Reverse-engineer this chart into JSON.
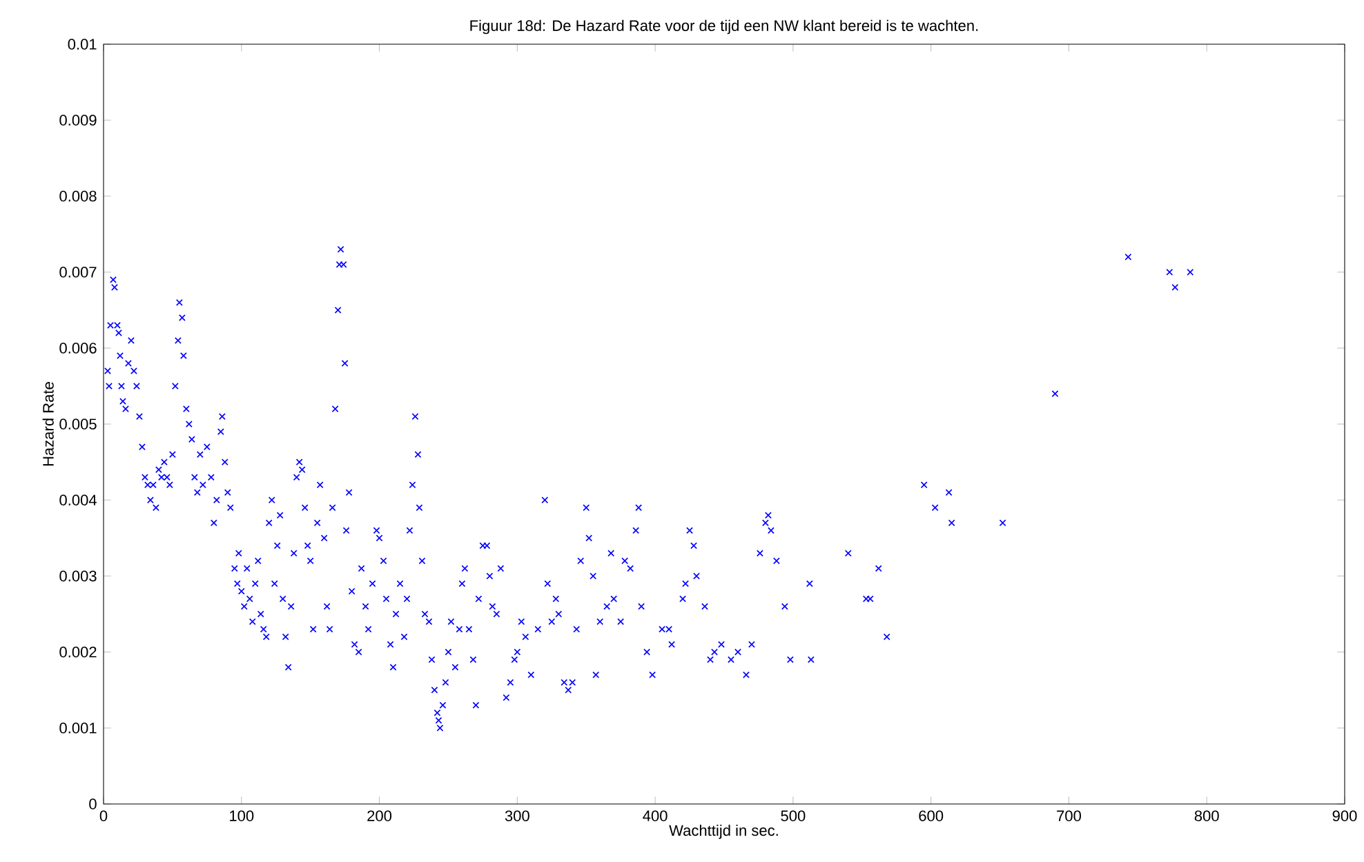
{
  "chart_data": {
    "type": "scatter",
    "title": "Figuur 18d: De Hazard Rate voor de tijd een NW klant bereid is te wachten.",
    "xlabel": "Wachttijd in sec.",
    "ylabel": "Hazard Rate",
    "marker": "cross",
    "grid": false,
    "xlim": [
      0,
      900
    ],
    "ylim": [
      0,
      0.01
    ],
    "xticks": [
      0,
      100,
      200,
      300,
      400,
      500,
      600,
      700,
      800,
      900
    ],
    "yticks": [
      0,
      0.001,
      0.002,
      0.003,
      0.004,
      0.005,
      0.006,
      0.007,
      0.008,
      0.009,
      0.01
    ],
    "series": [
      {
        "color": "#0000ff",
        "x": [
          3,
          4,
          5,
          7,
          8,
          10,
          11,
          12,
          13,
          14,
          16,
          18,
          20,
          22,
          24,
          26,
          28,
          30,
          32,
          34,
          36,
          38,
          40,
          42,
          44,
          46,
          48,
          50,
          52,
          54,
          55,
          57,
          58,
          60,
          62,
          64,
          66,
          68,
          70,
          72,
          75,
          78,
          80,
          82,
          85,
          86,
          88,
          90,
          92,
          95,
          97,
          98,
          100,
          102,
          104,
          106,
          108,
          110,
          112,
          114,
          116,
          118,
          120,
          122,
          124,
          126,
          128,
          130,
          132,
          134,
          136,
          138,
          140,
          142,
          144,
          146,
          148,
          150,
          152,
          155,
          157,
          160,
          162,
          164,
          166,
          168,
          170,
          171,
          172,
          174,
          175,
          176,
          178,
          180,
          182,
          185,
          187,
          190,
          192,
          195,
          198,
          200,
          203,
          205,
          208,
          210,
          212,
          215,
          218,
          220,
          222,
          224,
          226,
          228,
          229,
          231,
          233,
          236,
          238,
          240,
          242,
          243,
          244,
          246,
          248,
          250,
          252,
          255,
          258,
          260,
          262,
          265,
          268,
          270,
          272,
          275,
          278,
          280,
          282,
          285,
          288,
          292,
          295,
          298,
          300,
          303,
          306,
          310,
          315,
          320,
          322,
          325,
          328,
          330,
          334,
          337,
          340,
          343,
          346,
          350,
          352,
          355,
          357,
          360,
          365,
          368,
          370,
          375,
          378,
          382,
          386,
          388,
          390,
          394,
          398,
          405,
          410,
          412,
          420,
          422,
          425,
          428,
          430,
          436,
          440,
          443,
          448,
          455,
          460,
          466,
          470,
          476,
          480,
          482,
          484,
          488,
          494,
          498,
          512,
          513,
          540,
          553,
          556,
          562,
          568,
          595,
          603,
          613,
          615,
          652,
          690,
          743,
          773,
          777,
          788
        ],
        "values": [
          0.0057,
          0.0055,
          0.0063,
          0.0069,
          0.0068,
          0.0063,
          0.0062,
          0.0059,
          0.0055,
          0.0053,
          0.0052,
          0.0058,
          0.0061,
          0.0057,
          0.0055,
          0.0051,
          0.0047,
          0.0043,
          0.0042,
          0.004,
          0.0042,
          0.0039,
          0.0044,
          0.0043,
          0.0045,
          0.0043,
          0.0042,
          0.0046,
          0.0055,
          0.0061,
          0.0066,
          0.0064,
          0.0059,
          0.0052,
          0.005,
          0.0048,
          0.0043,
          0.0041,
          0.0046,
          0.0042,
          0.0047,
          0.0043,
          0.0037,
          0.004,
          0.0049,
          0.0051,
          0.0045,
          0.0041,
          0.0039,
          0.0031,
          0.0029,
          0.0033,
          0.0028,
          0.0026,
          0.0031,
          0.0027,
          0.0024,
          0.0029,
          0.0032,
          0.0025,
          0.0023,
          0.0022,
          0.0037,
          0.004,
          0.0029,
          0.0034,
          0.0038,
          0.0027,
          0.0022,
          0.0018,
          0.0026,
          0.0033,
          0.0043,
          0.0045,
          0.0044,
          0.0039,
          0.0034,
          0.0032,
          0.0023,
          0.0037,
          0.0042,
          0.0035,
          0.0026,
          0.0023,
          0.0039,
          0.0052,
          0.0065,
          0.0071,
          0.0073,
          0.0071,
          0.0058,
          0.0036,
          0.0041,
          0.0028,
          0.0021,
          0.002,
          0.0031,
          0.0026,
          0.0023,
          0.0029,
          0.0036,
          0.0035,
          0.0032,
          0.0027,
          0.0021,
          0.0018,
          0.0025,
          0.0029,
          0.0022,
          0.0027,
          0.0036,
          0.0042,
          0.0051,
          0.0046,
          0.0039,
          0.0032,
          0.0025,
          0.0024,
          0.0019,
          0.0015,
          0.0012,
          0.0011,
          0.001,
          0.0013,
          0.0016,
          0.002,
          0.0024,
          0.0018,
          0.0023,
          0.0029,
          0.0031,
          0.0023,
          0.0019,
          0.0013,
          0.0027,
          0.0034,
          0.0034,
          0.003,
          0.0026,
          0.0025,
          0.0031,
          0.0014,
          0.0016,
          0.0019,
          0.002,
          0.0024,
          0.0022,
          0.0017,
          0.0023,
          0.004,
          0.0029,
          0.0024,
          0.0027,
          0.0025,
          0.0016,
          0.0015,
          0.0016,
          0.0023,
          0.0032,
          0.0039,
          0.0035,
          0.003,
          0.0017,
          0.0024,
          0.0026,
          0.0033,
          0.0027,
          0.0024,
          0.0032,
          0.0031,
          0.0036,
          0.0039,
          0.0026,
          0.002,
          0.0017,
          0.0023,
          0.0023,
          0.0021,
          0.0027,
          0.0029,
          0.0036,
          0.0034,
          0.003,
          0.0026,
          0.0019,
          0.002,
          0.0021,
          0.0019,
          0.002,
          0.0017,
          0.0021,
          0.0033,
          0.0037,
          0.0038,
          0.0036,
          0.0032,
          0.0026,
          0.0019,
          0.0029,
          0.0019,
          0.0033,
          0.0027,
          0.0027,
          0.0031,
          0.0022,
          0.0042,
          0.0039,
          0.0041,
          0.0037,
          0.0037,
          0.0054,
          0.0072,
          0.007,
          0.0068,
          0.007
        ]
      }
    ]
  }
}
